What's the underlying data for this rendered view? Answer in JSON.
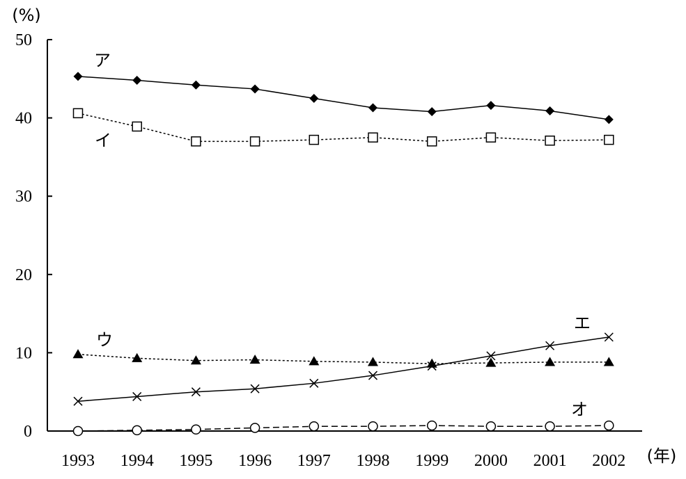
{
  "chart_data": {
    "type": "line",
    "title": "",
    "x": [
      1993,
      1994,
      1995,
      1996,
      1997,
      1998,
      1999,
      2000,
      2001,
      2002
    ],
    "x_tick_labels": [
      "1993",
      "1994",
      "1995",
      "1996",
      "1997",
      "1998",
      "1999",
      "2000",
      "2001",
      "2002"
    ],
    "xlabel": "(年)",
    "ylabel": "(%)",
    "ylim": [
      0,
      50
    ],
    "y_ticks": [
      0,
      10,
      20,
      30,
      40,
      50
    ],
    "y_tick_labels": [
      "0",
      "10",
      "20",
      "30",
      "40",
      "50"
    ],
    "grid": false,
    "legend": "none",
    "series": [
      {
        "name": "ア",
        "marker": "filled-diamond",
        "line": "solid",
        "color": "#000000",
        "values": [
          45.3,
          44.8,
          44.2,
          43.7,
          42.5,
          41.3,
          40.8,
          41.6,
          40.9,
          39.8
        ]
      },
      {
        "name": "イ",
        "marker": "open-square",
        "line": "dotted",
        "color": "#000000",
        "values": [
          40.6,
          38.9,
          37.0,
          37.0,
          37.2,
          37.5,
          37.0,
          37.5,
          37.1,
          37.2
        ]
      },
      {
        "name": "ウ",
        "marker": "filled-triangle",
        "line": "dotted",
        "color": "#000000",
        "values": [
          9.8,
          9.3,
          9.0,
          9.1,
          8.9,
          8.8,
          8.6,
          8.7,
          8.8,
          8.8
        ]
      },
      {
        "name": "エ",
        "marker": "x",
        "line": "solid",
        "color": "#000000",
        "values": [
          3.8,
          4.4,
          5.0,
          5.4,
          6.1,
          7.1,
          8.3,
          9.6,
          10.9,
          12.0
        ]
      },
      {
        "name": "オ",
        "marker": "open-circle",
        "line": "dashed",
        "color": "#000000",
        "values": [
          0.0,
          0.1,
          0.2,
          0.4,
          0.6,
          0.6,
          0.7,
          0.6,
          0.6,
          0.7
        ]
      }
    ]
  }
}
